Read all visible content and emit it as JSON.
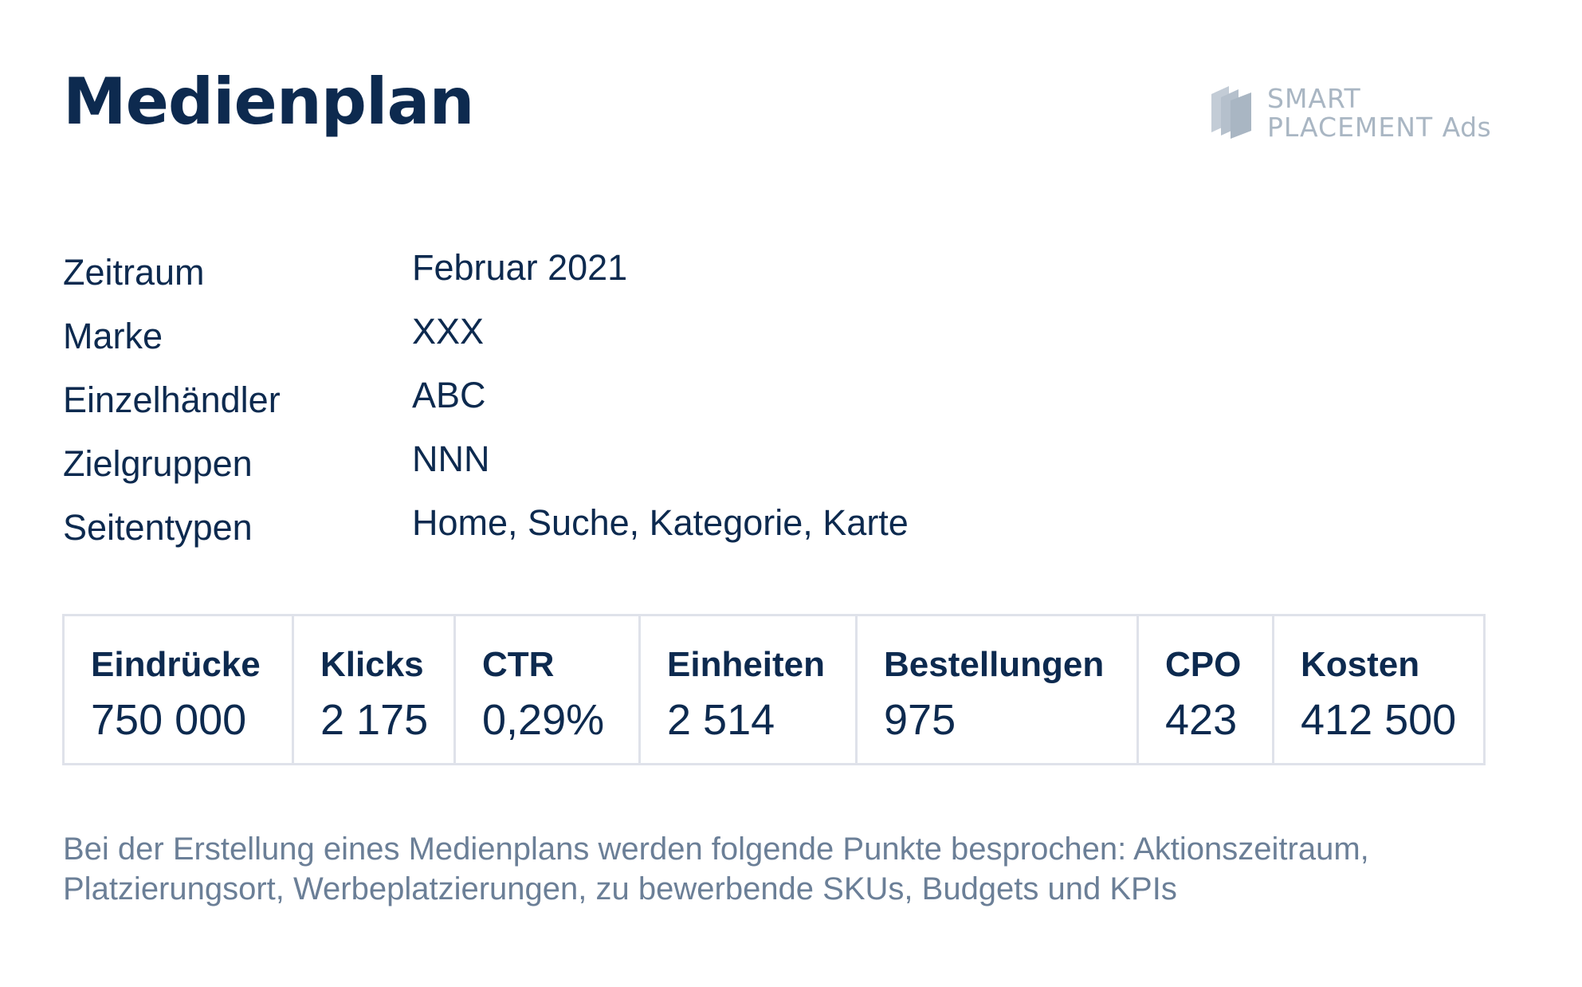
{
  "title": "Medienplan",
  "logo": {
    "line1": "SMART",
    "line2": "PLACEMENT",
    "line3": "Ads",
    "icon": "stacked-pages-icon",
    "color": "#a9b6c3"
  },
  "meta": [
    {
      "label": "Zeitraum",
      "value": "Februar 2021"
    },
    {
      "label": "Marke",
      "value": "XXX"
    },
    {
      "label": "Einzelhändler",
      "value": "ABC"
    },
    {
      "label": "Zielgruppen",
      "value": "NNN"
    },
    {
      "label": "Seitentypen",
      "value": "Home, Suche, Kategorie, Karte"
    }
  ],
  "kpis": [
    {
      "label": "Eindrücke",
      "value": "750 000"
    },
    {
      "label": "Klicks",
      "value": "2 175"
    },
    {
      "label": "CTR",
      "value": "0,29%"
    },
    {
      "label": "Einheiten",
      "value": "2 514"
    },
    {
      "label": "Bestellungen",
      "value": "975"
    },
    {
      "label": "CPO",
      "value": "423"
    },
    {
      "label": "Kosten",
      "value": "412 500"
    }
  ],
  "note": "Bei der Erstellung eines Medienplans werden folgende Punkte besprochen: Aktionszeitraum, Platzierungsort, Werbeplatzierungen, zu bewerbende SKUs, Budgets und KPIs",
  "colors": {
    "primary": "#0d2a4f",
    "muted": "#6b7f97",
    "border": "#dfe2ea"
  }
}
